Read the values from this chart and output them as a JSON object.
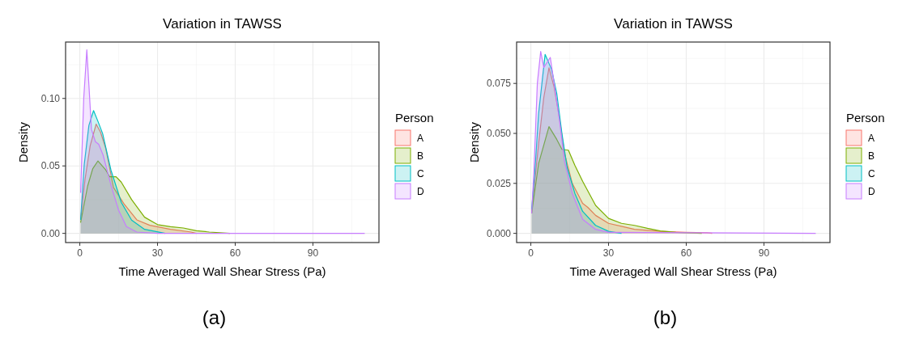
{
  "chart_data": [
    {
      "type": "area",
      "title": "Variation in TAWSS",
      "xlabel": "Time Averaged Wall Shear Stress (Pa)",
      "ylabel": "Density",
      "legend_title": "Person",
      "annotations": [
        "(a)"
      ],
      "xlim": [
        -5.5,
        115.5
      ],
      "xticks": [
        0,
        30,
        60,
        90
      ],
      "ylim": [
        -0.0068,
        0.1418
      ],
      "yticks": [
        {
          "value": 0,
          "label": "0.00"
        },
        {
          "value": 0.05,
          "label": "0.05"
        },
        {
          "value": 0.1,
          "label": "0.10"
        }
      ],
      "grid": true,
      "legend": "right",
      "series": [
        {
          "name": "A",
          "color": "#f8766d",
          "x": [
            0.3,
            2,
            4,
            6.3,
            8,
            10,
            13,
            17,
            22,
            27,
            35,
            43,
            45
          ],
          "values": [
            0.01,
            0.04,
            0.065,
            0.081,
            0.075,
            0.063,
            0.034,
            0.022,
            0.01,
            0.006,
            0.003,
            0.001,
            0
          ]
        },
        {
          "name": "B",
          "color": "#7cae00",
          "x": [
            0.3,
            3,
            5,
            7,
            10,
            11.5,
            14,
            16,
            20,
            25,
            30,
            35,
            40,
            45,
            50,
            58
          ],
          "values": [
            0.008,
            0.035,
            0.048,
            0.0537,
            0.047,
            0.042,
            0.042,
            0.038,
            0.025,
            0.012,
            0.0065,
            0.005,
            0.004,
            0.002,
            0.001,
            0
          ]
        },
        {
          "name": "C",
          "color": "#00bfc4",
          "x": [
            0.3,
            1.7,
            3.5,
            5.3,
            7,
            8.8,
            12,
            16,
            20,
            25,
            33
          ],
          "values": [
            0.01,
            0.051,
            0.08,
            0.091,
            0.083,
            0.074,
            0.047,
            0.023,
            0.0098,
            0.003,
            0
          ]
        },
        {
          "name": "D",
          "color": "#c77cff",
          "x": [
            0.3,
            1.5,
            2.7,
            3.5,
            4.5,
            6,
            7.3,
            9,
            12,
            15,
            18,
            22,
            30,
            110
          ],
          "values": [
            0.03,
            0.1,
            0.136,
            0.11,
            0.077,
            0.068,
            0.066,
            0.058,
            0.036,
            0.017,
            0.005,
            0.001,
            0,
            0
          ]
        }
      ]
    },
    {
      "type": "area",
      "title": "Variation in TAWSS",
      "xlabel": "Time Averaged Wall Shear Stress (Pa)",
      "ylabel": "Density",
      "legend_title": "Person",
      "annotations": [
        "(b)"
      ],
      "xlim": [
        -5.5,
        115.5
      ],
      "xticks": [
        0,
        30,
        60,
        90
      ],
      "ylim": [
        -0.0046,
        0.0957
      ],
      "yticks": [
        {
          "value": 0,
          "label": "0.000"
        },
        {
          "value": 0.025,
          "label": "0.025"
        },
        {
          "value": 0.05,
          "label": "0.050"
        },
        {
          "value": 0.075,
          "label": "0.075"
        }
      ],
      "grid": true,
      "legend": "right",
      "series": [
        {
          "name": "A",
          "color": "#f8766d",
          "x": [
            0.3,
            3,
            5,
            7,
            9,
            11,
            13,
            16,
            20,
            22,
            25,
            30,
            40,
            50,
            60,
            68,
            70
          ],
          "values": [
            0.01,
            0.045,
            0.068,
            0.0828,
            0.073,
            0.058,
            0.04,
            0.025,
            0.015,
            0.013,
            0.009,
            0.005,
            0.002,
            0.001,
            0.0005,
            0.0003,
            0
          ]
        },
        {
          "name": "B",
          "color": "#7cae00",
          "x": [
            0.3,
            3,
            7,
            10,
            12,
            14.5,
            17,
            20,
            25,
            30,
            35,
            40,
            45,
            50,
            56,
            66
          ],
          "values": [
            0.01,
            0.035,
            0.0534,
            0.047,
            0.042,
            0.0416,
            0.034,
            0.026,
            0.014,
            0.0075,
            0.005,
            0.004,
            0.0025,
            0.0012,
            0.0005,
            0
          ]
        },
        {
          "name": "C",
          "color": "#00bfc4",
          "x": [
            0.3,
            1.5,
            3,
            5.5,
            8,
            10,
            12,
            14,
            17,
            20,
            25,
            30,
            35
          ],
          "values": [
            0.012,
            0.03,
            0.06,
            0.0895,
            0.082,
            0.07,
            0.05,
            0.033,
            0.02,
            0.011,
            0.004,
            0.001,
            0
          ]
        },
        {
          "name": "D",
          "color": "#c77cff",
          "x": [
            0.3,
            1.2,
            2.5,
            3.8,
            5,
            6.5,
            7.5,
            9,
            11,
            13,
            16,
            20,
            25,
            30,
            110
          ],
          "values": [
            0.01,
            0.032,
            0.075,
            0.091,
            0.083,
            0.086,
            0.088,
            0.075,
            0.057,
            0.036,
            0.02,
            0.007,
            0.002,
            0.0005,
            0
          ]
        }
      ]
    }
  ]
}
